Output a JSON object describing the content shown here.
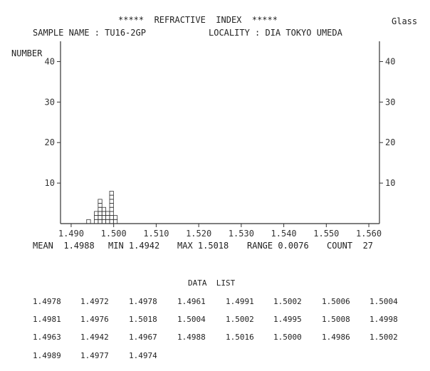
{
  "header": {
    "title": "*****  REFRACTIVE  INDEX  *****",
    "corner_label": "Glass",
    "sample_label": "SAMPLE NAME : TU16-2GP",
    "locality_label": "LOCALITY : DIA TOKYO UMEDA"
  },
  "stats": {
    "mean": "MEAN  1.4988",
    "min": "MIN 1.4942",
    "max": "MAX 1.5018",
    "range": "RANGE 0.0076",
    "count": "COUNT  27"
  },
  "data_list": {
    "title": "DATA  LIST",
    "rows": [
      [
        "1.4978",
        "1.4972",
        "1.4978",
        "1.4961",
        "1.4991",
        "1.5002",
        "1.5006",
        "1.5004"
      ],
      [
        "1.4981",
        "1.4976",
        "1.5018",
        "1.5004",
        "1.5002",
        "1.4995",
        "1.5008",
        "1.4998"
      ],
      [
        "1.4963",
        "1.4942",
        "1.4967",
        "1.4988",
        "1.5016",
        "1.5000",
        "1.4986",
        "1.5002"
      ],
      [
        "1.4989",
        "1.4977",
        "1.4974"
      ]
    ]
  },
  "chart_data": {
    "type": "bar",
    "title": "*****  REFRACTIVE  INDEX  *****",
    "ylabel": "NUMBER",
    "xlabel": "",
    "ylim": [
      0,
      45
    ],
    "xlim": [
      1.4875,
      1.5625
    ],
    "yticks": [
      10,
      20,
      30,
      40
    ],
    "ytick_labels": [
      "10",
      "20",
      "30",
      "40"
    ],
    "xticks": [
      1.49,
      1.5,
      1.51,
      1.52,
      1.53,
      1.54,
      1.55,
      1.56
    ],
    "xtick_labels": [
      "1.490",
      "1.500",
      "1.510",
      "1.520",
      "1.530",
      "1.540",
      "1.550",
      "1.560"
    ],
    "bin_width": 0.0009,
    "bins": [
      {
        "x": 1.4941,
        "count": 1
      },
      {
        "x": 1.4959,
        "count": 3
      },
      {
        "x": 1.4968,
        "count": 6
      },
      {
        "x": 1.4977,
        "count": 4
      },
      {
        "x": 1.4986,
        "count": 3
      },
      {
        "x": 1.4995,
        "count": 8
      },
      {
        "x": 1.5004,
        "count": 2
      }
    ]
  }
}
